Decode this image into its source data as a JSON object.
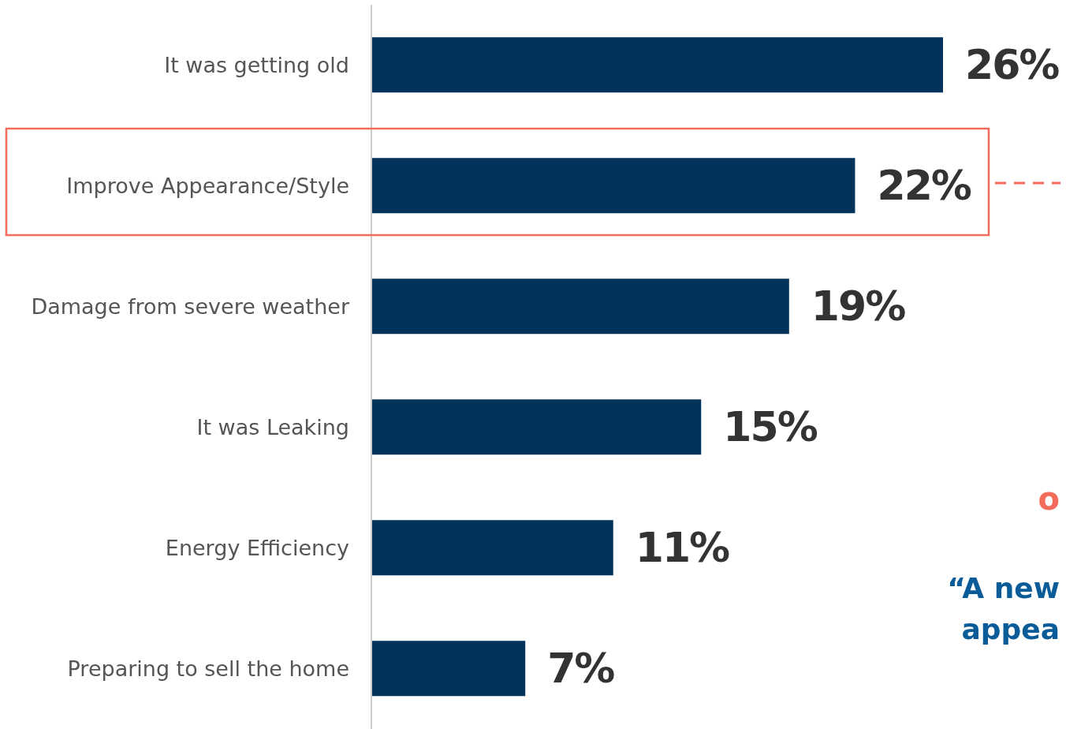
{
  "chart_data": {
    "type": "bar",
    "orientation": "horizontal",
    "categories": [
      "It was getting old",
      "Improve Appearance/Style",
      "Damage from severe weather",
      "It was Leaking",
      "Energy Efficiency",
      "Preparing to sell the home"
    ],
    "values": [
      26,
      22,
      19,
      15,
      11,
      7
    ],
    "color": "#03325a",
    "value_labels": [
      "26%",
      "22%",
      "19%",
      "15%",
      "11%",
      "7%"
    ],
    "annotations": [
      "o",
      "“A new",
      "appea"
    ]
  }
}
